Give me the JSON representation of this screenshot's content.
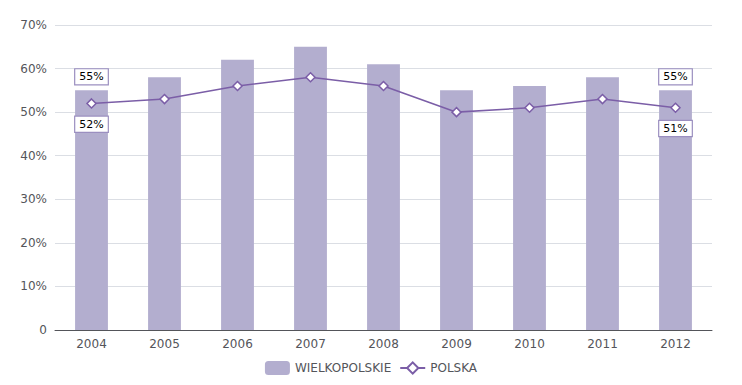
{
  "chart_data": {
    "type": "bar",
    "categories": [
      "2004",
      "2005",
      "2006",
      "2007",
      "2008",
      "2009",
      "2010",
      "2011",
      "2012"
    ],
    "series": [
      {
        "name": "WIELKOPOLSKIE",
        "type": "bar",
        "color": "#b3aecf",
        "values": [
          55,
          58,
          62,
          65,
          61,
          55,
          56,
          58,
          55
        ]
      },
      {
        "name": "POLSKA",
        "type": "line",
        "color": "#7b5ea7",
        "marker": "diamond",
        "values": [
          52,
          53,
          56,
          58,
          56,
          50,
          51,
          53,
          51
        ]
      }
    ],
    "ylim": [
      0,
      70
    ],
    "yticks": [
      0,
      {
        "value": 10,
        "label": "10%"
      },
      {
        "value": 20,
        "label": "20%"
      },
      {
        "value": 30,
        "label": "30%"
      },
      {
        "value": 40,
        "label": "40%"
      },
      {
        "value": 50,
        "label": "50%"
      },
      {
        "value": 60,
        "label": "60%"
      },
      {
        "value": 70,
        "label": "70%"
      }
    ],
    "grid": true,
    "legend": "bottom",
    "annotations": [
      {
        "text": "55%",
        "series": "WIELKOPOLSKIE",
        "x": "2004",
        "color": "#9b8fc0"
      },
      {
        "text": "52%",
        "series": "POLSKA",
        "x": "2004",
        "color": "#9b8fc0"
      },
      {
        "text": "55%",
        "series": "WIELKOPOLSKIE",
        "x": "2012",
        "color": "#9b8fc0"
      },
      {
        "text": "51%",
        "series": "POLSKA",
        "x": "2012",
        "color": "#9b8fc0"
      }
    ]
  }
}
